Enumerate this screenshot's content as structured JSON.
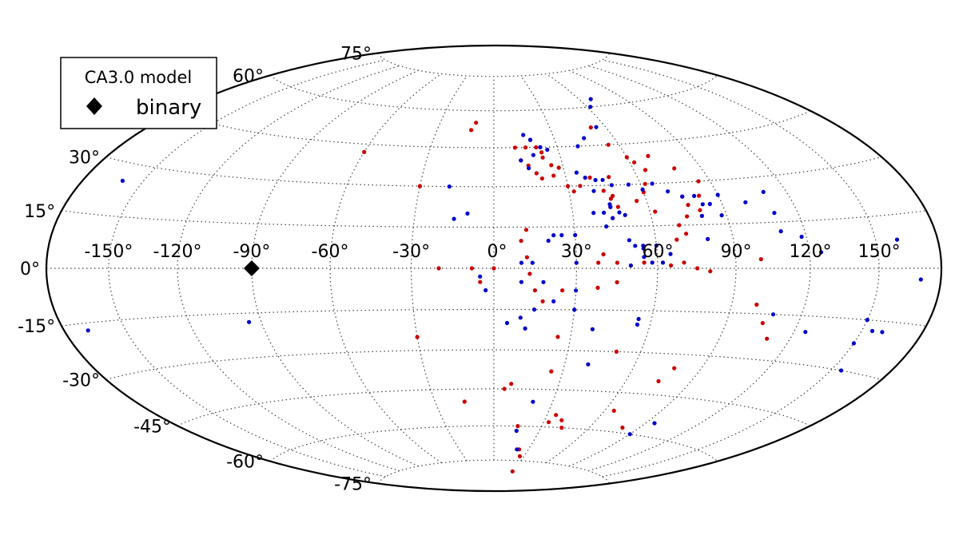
{
  "chart_data": {
    "type": "scatter",
    "projection": "hammer-aitoff",
    "grid": true,
    "legend": {
      "title": "CA3.0 model",
      "placement": "top-left",
      "entries": [
        {
          "label": "binary",
          "marker": "diamond",
          "color": "#000000"
        }
      ]
    },
    "longitude_ticks": [
      "-150°",
      "-120°",
      "-90°",
      "-60°",
      "-30°",
      "0°",
      "30°",
      "60°",
      "90°",
      "120°",
      "150°"
    ],
    "latitude_ticks": [
      "75°",
      "60°",
      "30°",
      "15°",
      "0°",
      "-15°",
      "-30°",
      "-45°",
      "-60°",
      "-75°"
    ],
    "binary": {
      "lon": -90,
      "lat": 0
    },
    "series": [
      {
        "color": "#cc0000",
        "points": [
          [
            -10,
            55
          ],
          [
            -12,
            52
          ],
          [
            -60,
            42
          ],
          [
            -30,
            30
          ],
          [
            -20,
            0
          ],
          [
            -8,
            0
          ],
          [
            -5,
            -5
          ],
          [
            -30,
            -25
          ],
          [
            -15,
            -50
          ],
          [
            5,
            -45
          ],
          [
            8,
            -43
          ],
          [
            0,
            0
          ],
          [
            10,
            45
          ],
          [
            15,
            45
          ],
          [
            18,
            48
          ],
          [
            20,
            45
          ],
          [
            22,
            43
          ],
          [
            22,
            41
          ],
          [
            25,
            38
          ],
          [
            28,
            37
          ],
          [
            12,
            40
          ],
          [
            15,
            38
          ],
          [
            18,
            35
          ],
          [
            20,
            33
          ],
          [
            25,
            34
          ],
          [
            30,
            30
          ],
          [
            32,
            28
          ],
          [
            35,
            30
          ],
          [
            40,
            33
          ],
          [
            44,
            28
          ],
          [
            48,
            33
          ],
          [
            47,
            26
          ],
          [
            46,
            25
          ],
          [
            45,
            22
          ],
          [
            48,
            22
          ],
          [
            45,
            18
          ],
          [
            52,
            52
          ],
          [
            55,
            45
          ],
          [
            60,
            40
          ],
          [
            62,
            38
          ],
          [
            65,
            35
          ],
          [
            62,
            30
          ],
          [
            60,
            27
          ],
          [
            56,
            24
          ],
          [
            62,
            20
          ],
          [
            70,
            40
          ],
          [
            78,
            35
          ],
          [
            85,
            30
          ],
          [
            82,
            25
          ],
          [
            75,
            25
          ],
          [
            76,
            22
          ],
          [
            80,
            20
          ],
          [
            74,
            18
          ],
          [
            70,
            15
          ],
          [
            72,
            12
          ],
          [
            68,
            10
          ],
          [
            12,
            14
          ],
          [
            10,
            10
          ],
          [
            40,
            5
          ],
          [
            38,
            2
          ],
          [
            45,
            2
          ],
          [
            55,
            2
          ],
          [
            65,
            1
          ],
          [
            70,
            2
          ],
          [
            75,
            0
          ],
          [
            80,
            -1
          ],
          [
            100,
            3
          ],
          [
            12,
            4
          ],
          [
            13,
            -2
          ],
          [
            15,
            -8
          ],
          [
            18,
            -12
          ],
          [
            25,
            -8
          ],
          [
            38,
            -7
          ],
          [
            45,
            -5
          ],
          [
            100,
            -12
          ],
          [
            105,
            -18
          ],
          [
            110,
            -23
          ],
          [
            25,
            -25
          ],
          [
            25,
            -38
          ],
          [
            50,
            -30
          ],
          [
            78,
            -35
          ],
          [
            75,
            -40
          ],
          [
            65,
            -52
          ],
          [
            80,
            -58
          ],
          [
            35,
            -55
          ],
          [
            33,
            -58
          ],
          [
            40,
            -57
          ],
          [
            43,
            -60
          ],
          [
            15,
            -60
          ],
          [
            22,
            -70
          ],
          [
            26,
            -73
          ],
          [
            30,
            -80
          ]
        ]
      },
      {
        "color": "#0000cc",
        "points": [
          [
            -160,
            25
          ],
          [
            -18,
            30
          ],
          [
            -15,
            18
          ],
          [
            -10,
            20
          ],
          [
            -95,
            -18
          ],
          [
            -168,
            -17
          ],
          [
            -5,
            -3
          ],
          [
            -3,
            -8
          ],
          [
            15,
            50
          ],
          [
            18,
            48
          ],
          [
            22,
            45
          ],
          [
            25,
            44
          ],
          [
            18,
            42
          ],
          [
            12,
            40
          ],
          [
            15,
            37
          ],
          [
            35,
            35
          ],
          [
            38,
            33
          ],
          [
            42,
            32
          ],
          [
            45,
            32
          ],
          [
            48,
            30
          ],
          [
            55,
            30
          ],
          [
            60,
            28
          ],
          [
            65,
            30
          ],
          [
            70,
            27
          ],
          [
            75,
            25
          ],
          [
            80,
            25
          ],
          [
            82,
            22
          ],
          [
            85,
            22
          ],
          [
            80,
            18
          ],
          [
            88,
            18
          ],
          [
            90,
            25
          ],
          [
            100,
            22
          ],
          [
            110,
            25
          ],
          [
            110,
            18
          ],
          [
            110,
            12
          ],
          [
            118,
            10
          ],
          [
            125,
            5
          ],
          [
            160,
            8
          ],
          [
            170,
            -3
          ],
          [
            108,
            -15
          ],
          [
            150,
            -15
          ],
          [
            155,
            -18
          ],
          [
            160,
            -18
          ],
          [
            150,
            -22
          ],
          [
            155,
            -30
          ],
          [
            95,
            -55
          ],
          [
            90,
            -60
          ],
          [
            125,
            -20
          ],
          [
            40,
            45
          ],
          [
            45,
            48
          ],
          [
            55,
            52
          ],
          [
            62,
            60
          ],
          [
            68,
            63
          ],
          [
            40,
            28
          ],
          [
            45,
            23
          ],
          [
            45,
            22
          ],
          [
            38,
            20
          ],
          [
            42,
            20
          ],
          [
            48,
            20
          ],
          [
            50,
            19
          ],
          [
            45,
            18
          ],
          [
            42,
            15
          ],
          [
            30,
            12
          ],
          [
            25,
            12
          ],
          [
            22,
            12
          ],
          [
            20,
            10
          ],
          [
            50,
            10
          ],
          [
            52,
            8
          ],
          [
            55,
            8
          ],
          [
            55,
            7
          ],
          [
            60,
            8
          ],
          [
            65,
            5
          ],
          [
            62,
            2
          ],
          [
            80,
            10
          ],
          [
            55,
            4
          ],
          [
            58,
            2
          ],
          [
            50,
            1
          ],
          [
            10,
            2
          ],
          [
            14,
            2
          ],
          [
            30,
            2
          ],
          [
            10,
            -5
          ],
          [
            18,
            -5
          ],
          [
            30,
            -8
          ],
          [
            22,
            -12
          ],
          [
            15,
            -15
          ],
          [
            10,
            -18
          ],
          [
            12,
            -22
          ],
          [
            30,
            -15
          ],
          [
            5,
            -20
          ],
          [
            38,
            -22
          ],
          [
            55,
            -20
          ],
          [
            40,
            -35
          ],
          [
            20,
            -50
          ],
          [
            15,
            -62
          ],
          [
            20,
            -70
          ],
          [
            55,
            -18
          ]
        ]
      }
    ]
  }
}
